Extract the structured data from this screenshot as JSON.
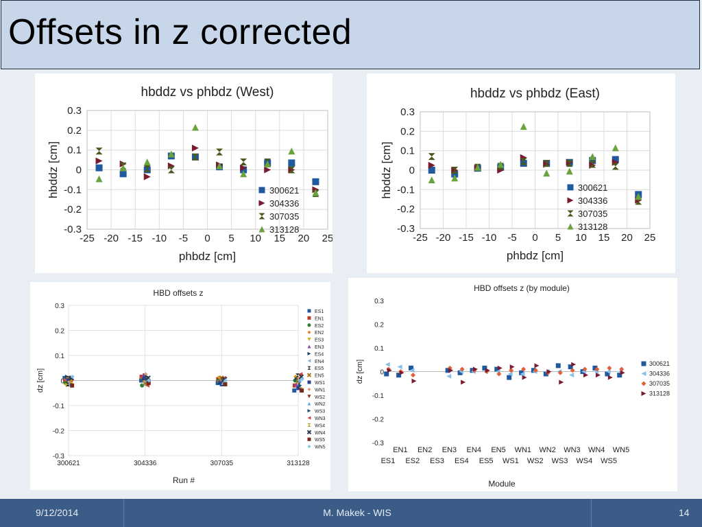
{
  "slide": {
    "title": "Offsets in z corrected",
    "footer": {
      "date": "9/12/2014",
      "author": "M. Makek - WIS",
      "page": "14"
    }
  },
  "colors": {
    "background": "#e9eef5",
    "title_bar": "#c8d6ea",
    "footer": "#3a5c86"
  },
  "chart_data": [
    {
      "type": "scatter",
      "title": "hbddz vs phbdz (West)",
      "xlabel": "phbdz [cm]",
      "ylabel": "hbddz [cm]",
      "xlim": [
        -25,
        25
      ],
      "ylim": [
        -0.3,
        0.3
      ],
      "xticks": [
        -25,
        -20,
        -15,
        -10,
        -5,
        0,
        5,
        10,
        15,
        20,
        25
      ],
      "yticks": [
        -0.3,
        -0.2,
        -0.1,
        0,
        0.1,
        0.2,
        0.3
      ],
      "grid": true,
      "legend_position": "bottom-right",
      "series": [
        {
          "name": "300621",
          "marker": "square",
          "color": "#1f5a9e",
          "x": [
            -22.5,
            -17.5,
            -12.5,
            -7.5,
            -2.5,
            2.5,
            7.5,
            12.5,
            17.5,
            22.5
          ],
          "y": [
            0.01,
            -0.02,
            0.0,
            0.07,
            0.065,
            0.015,
            0.0,
            0.035,
            0.035,
            -0.06
          ]
        },
        {
          "name": "304336",
          "marker": "triangle-right",
          "color": "#7a1a2e",
          "x": [
            -22.5,
            -17.5,
            -12.5,
            -7.5,
            -2.5,
            2.5,
            7.5,
            12.5,
            17.5,
            22.5
          ],
          "y": [
            0.045,
            0.03,
            -0.035,
            0.02,
            0.11,
            0.025,
            0.01,
            0.0,
            0.0,
            -0.1
          ]
        },
        {
          "name": "307035",
          "marker": "bowtie",
          "color": "#4a5a1e",
          "x": [
            -22.5,
            -17.5,
            -12.5,
            -7.5,
            -2.5,
            2.5,
            7.5,
            12.5,
            17.5,
            22.5
          ],
          "y": [
            0.095,
            0.02,
            0.005,
            0.0,
            0.065,
            0.09,
            0.04,
            0.04,
            0.0,
            -0.12
          ]
        },
        {
          "name": "313128",
          "marker": "triangle-up",
          "color": "#6aa33e",
          "x": [
            -22.5,
            -17.5,
            -12.5,
            -7.5,
            -2.5,
            2.5,
            7.5,
            12.5,
            17.5,
            22.5
          ],
          "y": [
            -0.045,
            0.01,
            0.04,
            0.08,
            0.215,
            0.02,
            -0.02,
            0.03,
            0.095,
            -0.115
          ]
        }
      ]
    },
    {
      "type": "scatter",
      "title": "hbddz vs phbdz (East)",
      "xlabel": "phbdz [cm]",
      "ylabel": "hbddz [cm]",
      "xlim": [
        -25,
        25
      ],
      "ylim": [
        -0.3,
        0.3
      ],
      "xticks": [
        -25,
        -20,
        -15,
        -10,
        -5,
        0,
        5,
        10,
        15,
        20,
        25
      ],
      "yticks": [
        -0.3,
        -0.2,
        -0.1,
        0,
        0.1,
        0.2,
        0.3
      ],
      "grid": true,
      "legend_position": "bottom-right",
      "series": [
        {
          "name": "300621",
          "marker": "square",
          "color": "#1f5a9e",
          "x": [
            -22.5,
            -17.5,
            -12.5,
            -7.5,
            -2.5,
            2.5,
            7.5,
            12.5,
            17.5,
            22.5
          ],
          "y": [
            0.0,
            -0.02,
            0.01,
            0.015,
            0.035,
            0.035,
            0.04,
            0.05,
            0.055,
            -0.125
          ]
        },
        {
          "name": "304336",
          "marker": "triangle-right",
          "color": "#7a1a2e",
          "x": [
            -22.5,
            -17.5,
            -12.5,
            -7.5,
            -2.5,
            2.5,
            7.5,
            12.5,
            17.5,
            22.5
          ],
          "y": [
            0.025,
            0.0,
            0.01,
            0.0,
            0.065,
            0.03,
            0.04,
            0.025,
            0.04,
            -0.155
          ]
        },
        {
          "name": "307035",
          "marker": "bowtie",
          "color": "#4a5a1e",
          "x": [
            -22.5,
            -17.5,
            -12.5,
            -7.5,
            -2.5,
            2.5,
            7.5,
            12.5,
            17.5,
            22.5
          ],
          "y": [
            0.07,
            0.0,
            0.015,
            0.02,
            0.045,
            0.035,
            0.035,
            0.03,
            0.02,
            -0.16
          ]
        },
        {
          "name": "313128",
          "marker": "triangle-up",
          "color": "#6aa33e",
          "x": [
            -22.5,
            -17.5,
            -12.5,
            -7.5,
            -2.5,
            2.5,
            7.5,
            12.5,
            17.5,
            22.5
          ],
          "y": [
            -0.05,
            -0.04,
            0.015,
            0.03,
            0.225,
            -0.015,
            -0.005,
            0.07,
            0.115,
            -0.135
          ]
        }
      ]
    },
    {
      "type": "scatter",
      "title": "HBD offsets z",
      "xlabel": "Run #",
      "ylabel": "dz [cm]",
      "ylim": [
        -0.3,
        0.3
      ],
      "yticks": [
        -0.3,
        -0.2,
        -0.1,
        0,
        0.1,
        0.2,
        0.3
      ],
      "categories": [
        "300621",
        "304336",
        "307035",
        "313128"
      ],
      "grid": true,
      "legend_position": "right",
      "series": [
        {
          "name": "ES1",
          "marker": "square",
          "color": "#1f5a9e",
          "values": [
            0.01,
            0.0,
            -0.01,
            -0.04
          ]
        },
        {
          "name": "EN1",
          "marker": "square",
          "color": "#c0392b",
          "values": [
            0.0,
            0.015,
            0.005,
            -0.02
          ]
        },
        {
          "name": "ES2",
          "marker": "circle",
          "color": "#2e7d32",
          "values": [
            -0.01,
            -0.02,
            0.0,
            0.0
          ]
        },
        {
          "name": "EN2",
          "marker": "diamond",
          "color": "#e67e22",
          "values": [
            0.005,
            0.01,
            -0.005,
            0.015
          ]
        },
        {
          "name": "ES3",
          "marker": "triangle-down",
          "color": "#d4ac0d",
          "values": [
            -0.02,
            0.0,
            0.01,
            0.01
          ]
        },
        {
          "name": "EN3",
          "marker": "triangle-up",
          "color": "#8e44ad",
          "values": [
            0.01,
            0.02,
            0.0,
            -0.015
          ]
        },
        {
          "name": "ES4",
          "marker": "triangle-right",
          "color": "#154360",
          "values": [
            0.015,
            0.005,
            -0.01,
            0.005
          ]
        },
        {
          "name": "EN4",
          "marker": "triangle-left",
          "color": "#7fb3d5",
          "values": [
            0.0,
            -0.015,
            0.005,
            -0.025
          ]
        },
        {
          "name": "ES5",
          "marker": "bowtie",
          "color": "#1b2631",
          "values": [
            -0.015,
            0.02,
            -0.005,
            0.02
          ]
        },
        {
          "name": "EN5",
          "marker": "x",
          "color": "#a6761d",
          "values": [
            0.005,
            -0.01,
            0.01,
            -0.005
          ]
        },
        {
          "name": "WS1",
          "marker": "square",
          "color": "#2c3e91",
          "values": [
            0.0,
            0.01,
            -0.015,
            -0.03
          ]
        },
        {
          "name": "WN1",
          "marker": "diamond",
          "color": "#e59866",
          "values": [
            -0.005,
            0.025,
            0.0,
            0.01
          ]
        },
        {
          "name": "WS2",
          "marker": "triangle-down",
          "color": "#922b21",
          "values": [
            0.01,
            -0.005,
            0.005,
            -0.01
          ]
        },
        {
          "name": "WN2",
          "marker": "triangle-up",
          "color": "#5dade2",
          "values": [
            -0.01,
            0.0,
            -0.01,
            0.0
          ]
        },
        {
          "name": "WS3",
          "marker": "triangle-right",
          "color": "#1a5276",
          "values": [
            0.005,
            0.015,
            0.0,
            -0.02
          ]
        },
        {
          "name": "WN3",
          "marker": "triangle-left",
          "color": "#cb4335",
          "values": [
            0.0,
            -0.02,
            0.01,
            0.025
          ]
        },
        {
          "name": "WS4",
          "marker": "bowtie",
          "color": "#b7950b",
          "values": [
            -0.005,
            0.005,
            -0.005,
            -0.035
          ]
        },
        {
          "name": "WN4",
          "marker": "x",
          "color": "#283747",
          "values": [
            0.01,
            0.01,
            0.005,
            0.015
          ]
        },
        {
          "name": "WS5",
          "marker": "square",
          "color": "#78281f",
          "values": [
            -0.02,
            -0.01,
            -0.015,
            -0.04
          ]
        },
        {
          "name": "WN5",
          "marker": "diamond",
          "color": "#85c1e9",
          "values": [
            0.015,
            0.0,
            0.0,
            0.005
          ]
        }
      ]
    },
    {
      "type": "scatter",
      "title": "HBD offsets z (by module)",
      "xlabel": "Module",
      "ylabel": "dz [cm]",
      "ylim": [
        -0.3,
        0.3
      ],
      "yticks": [
        -0.3,
        -0.2,
        -0.1,
        0,
        0.1,
        0.2,
        0.3
      ],
      "categories": [
        "ES1",
        "EN1",
        "ES2",
        "EN2",
        "ES3",
        "EN3",
        "ES4",
        "EN4",
        "ES5",
        "EN5",
        "WS1",
        "WN1",
        "WS2",
        "WN2",
        "WS3",
        "WN3",
        "WS4",
        "WN4",
        "WS5",
        "WN5"
      ],
      "grid": false,
      "legend_position": "right",
      "series": [
        {
          "name": "300621",
          "marker": "square",
          "color": "#1f5a9e",
          "values": [
            -0.01,
            -0.015,
            0.015,
            null,
            null,
            0.005,
            -0.005,
            0.005,
            0.015,
            0.01,
            -0.025,
            -0.005,
            0.005,
            -0.01,
            0.025,
            0.02,
            0.0,
            0.015,
            -0.01,
            -0.015
          ]
        },
        {
          "name": "304336",
          "marker": "triangle-left",
          "color": "#85c1e9",
          "values": [
            0.03,
            0.02,
            0.005,
            null,
            null,
            -0.02,
            0.0,
            0.0,
            0.0,
            0.0,
            -0.01,
            -0.01,
            0.0,
            0.0,
            0.0,
            -0.015,
            0.0,
            0.0,
            0.0,
            0.0
          ]
        },
        {
          "name": "307035",
          "marker": "diamond",
          "color": "#e0603a",
          "values": [
            0.01,
            0.0,
            -0.015,
            null,
            null,
            0.015,
            0.01,
            0.005,
            0.0,
            -0.01,
            0.005,
            0.01,
            0.005,
            -0.005,
            -0.005,
            0.005,
            0.01,
            0.01,
            0.015,
            0.01
          ]
        },
        {
          "name": "313128",
          "marker": "triangle-right",
          "color": "#7a1a2e",
          "values": [
            0.005,
            -0.005,
            -0.04,
            null,
            null,
            0.005,
            -0.045,
            0.01,
            0.005,
            0.015,
            0.02,
            -0.025,
            0.025,
            0.0,
            -0.045,
            0.03,
            -0.015,
            -0.015,
            -0.025,
            -0.005
          ]
        }
      ]
    }
  ]
}
